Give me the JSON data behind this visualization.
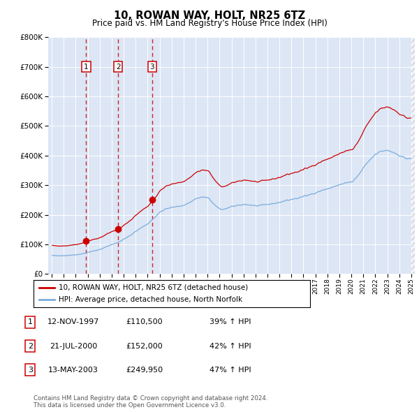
{
  "title": "10, ROWAN WAY, HOLT, NR25 6TZ",
  "subtitle": "Price paid vs. HM Land Registry's House Price Index (HPI)",
  "property_label": "10, ROWAN WAY, HOLT, NR25 6TZ (detached house)",
  "hpi_label": "HPI: Average price, detached house, North Norfolk",
  "transactions": [
    {
      "num": 1,
      "date": "12-NOV-1997",
      "price": 110500,
      "pct": "39%",
      "dir": "↑"
    },
    {
      "num": 2,
      "date": "21-JUL-2000",
      "price": 152000,
      "pct": "42%",
      "dir": "↑"
    },
    {
      "num": 3,
      "date": "13-MAY-2003",
      "price": 249950,
      "pct": "47%",
      "dir": "↑"
    }
  ],
  "transaction_years": [
    1997.875,
    2000.542,
    2003.37
  ],
  "transaction_prices": [
    110500,
    152000,
    249950
  ],
  "footer": "Contains HM Land Registry data © Crown copyright and database right 2024.\nThis data is licensed under the Open Government Licence v3.0.",
  "property_color": "#cc0000",
  "hpi_color": "#7aaddd",
  "background_color": "#dce6f5",
  "ylim": [
    0,
    800000
  ],
  "xlim_start": 1994.7,
  "xlim_end": 2025.3,
  "yticks": [
    0,
    100000,
    200000,
    300000,
    400000,
    500000,
    600000,
    700000,
    800000
  ]
}
